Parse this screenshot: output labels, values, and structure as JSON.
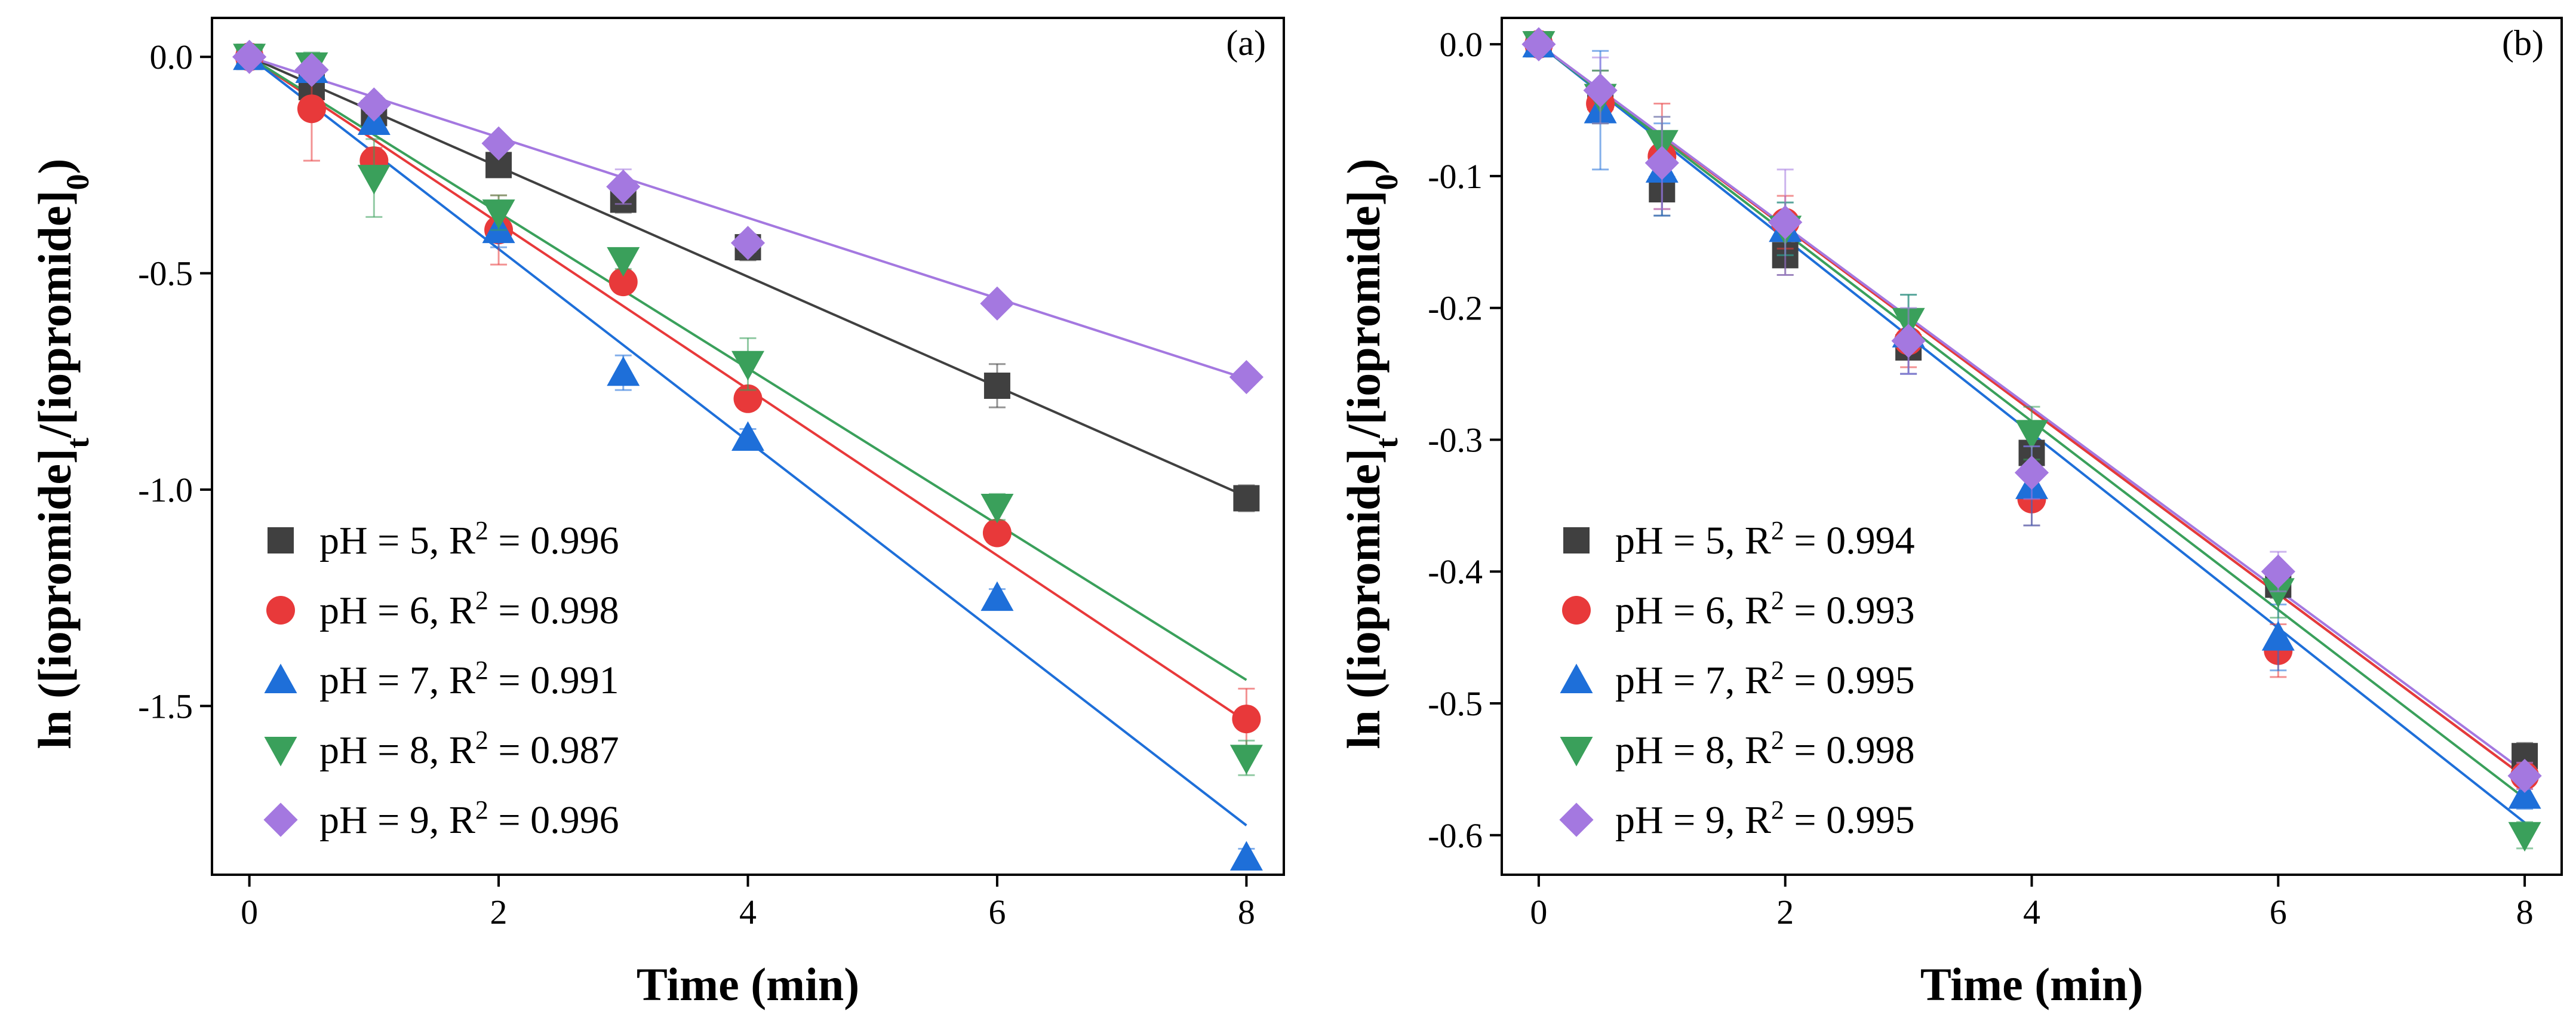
{
  "figure": {
    "ylabel_prefix": "ln ([iopromide]",
    "ylabel_sub_t": "t",
    "ylabel_mid": "/[iopromide]",
    "ylabel_sub_0": "0",
    "ylabel_suffix": ")"
  },
  "chart_data": [
    {
      "type": "scatter",
      "panel": "(a)",
      "xlabel": "Time (min)",
      "ylabel": "ln ([iopromide]t/[iopromide]0)",
      "xlim": [
        -0.3,
        8.3
      ],
      "ylim": [
        -1.89,
        0.09
      ],
      "xticks": [
        0,
        2,
        4,
        6,
        8
      ],
      "xtick_labels": [
        "0",
        "2",
        "4",
        "6",
        "8"
      ],
      "yticks": [
        0,
        -0.5,
        -1,
        -1.5
      ],
      "ytick_labels": [
        "0.0",
        "-0.5",
        "-1.0",
        "-1.5"
      ],
      "x": [
        0,
        0.5,
        1,
        2,
        3,
        4,
        6,
        8
      ],
      "series": [
        {
          "name": "pH = 5",
          "legend": [
            "pH = 5, R",
            "2",
            " = 0.996"
          ],
          "marker": "square",
          "color": "#404040",
          "values": [
            0,
            -0.07,
            -0.13,
            -0.25,
            -0.33,
            -0.44,
            -0.76,
            -1.02
          ],
          "errors": [
            0,
            0.02,
            0.02,
            0.01,
            0.03,
            0.03,
            0.05,
            0.03
          ],
          "slope": -0.127
        },
        {
          "name": "pH = 6",
          "legend": [
            "pH = 6, R",
            "2",
            " = 0.998"
          ],
          "marker": "circle",
          "color": "#e8393a",
          "values": [
            0,
            -0.12,
            -0.24,
            -0.4,
            -0.52,
            -0.79,
            -1.1,
            -1.53
          ],
          "errors": [
            0,
            0.12,
            0.03,
            0.08,
            0.02,
            0.02,
            0.02,
            0.07
          ],
          "slope": -0.192
        },
        {
          "name": "pH = 7",
          "legend": [
            "pH = 7, R",
            "2",
            " = 0.991"
          ],
          "marker": "triangle-up",
          "color": "#1e6fd9",
          "values": [
            0,
            -0.03,
            -0.15,
            -0.4,
            -0.73,
            -0.88,
            -1.25,
            -1.85
          ],
          "errors": [
            0,
            0.02,
            0.02,
            0.04,
            0.04,
            0.02,
            0.02,
            0.02
          ],
          "slope": -0.222
        },
        {
          "name": "pH = 8",
          "legend": [
            "pH = 8, R",
            "2",
            " = 0.987"
          ],
          "marker": "triangle-down",
          "color": "#3aa05b",
          "values": [
            0,
            -0.02,
            -0.28,
            -0.36,
            -0.47,
            -0.71,
            -1.04,
            -1.62
          ],
          "errors": [
            0,
            0.03,
            0.09,
            0.04,
            0.02,
            0.06,
            0.03,
            0.04
          ],
          "slope": -0.18
        },
        {
          "name": "pH = 9",
          "legend": [
            "pH = 9, R",
            "2",
            " = 0.996"
          ],
          "marker": "diamond",
          "color": "#a478e0",
          "values": [
            0,
            -0.03,
            -0.11,
            -0.2,
            -0.3,
            -0.43,
            -0.57,
            -0.74
          ],
          "errors": [
            0,
            0.02,
            0.02,
            0.01,
            0.04,
            0.02,
            0.01,
            0.01
          ],
          "slope": -0.093
        }
      ]
    },
    {
      "type": "scatter",
      "panel": "(b)",
      "xlabel": "Time (min)",
      "ylabel": "ln ([iopromide]t/[iopromide]0)",
      "xlim": [
        -0.3,
        8.3
      ],
      "ylim": [
        -0.63,
        0.02
      ],
      "xticks": [
        0,
        2,
        4,
        6,
        8
      ],
      "xtick_labels": [
        "0",
        "2",
        "4",
        "6",
        "8"
      ],
      "yticks": [
        0,
        -0.1,
        -0.2,
        -0.3,
        -0.4,
        -0.5,
        -0.6
      ],
      "ytick_labels": [
        "0.0",
        "-0.1",
        "-0.2",
        "-0.3",
        "-0.4",
        "-0.5",
        "-0.6"
      ],
      "x": [
        0,
        0.5,
        1,
        2,
        3,
        4,
        6,
        8
      ],
      "series": [
        {
          "name": "pH = 5",
          "legend": [
            "pH = 5, R",
            "2",
            " = 0.994"
          ],
          "marker": "square",
          "color": "#404040",
          "values": [
            0,
            -0.04,
            -0.11,
            -0.16,
            -0.23,
            -0.31,
            -0.41,
            -0.54
          ],
          "errors": [
            0,
            0.02,
            0.02,
            0.015,
            0.02,
            0.02,
            0.01,
            0.01
          ],
          "slope": -0.0695
        },
        {
          "name": "pH = 6",
          "legend": [
            "pH = 6, R",
            "2",
            " = 0.993"
          ],
          "marker": "circle",
          "color": "#e8393a",
          "values": [
            0,
            -0.045,
            -0.085,
            -0.135,
            -0.225,
            -0.345,
            -0.46,
            -0.555
          ],
          "errors": [
            0,
            0.01,
            0.04,
            0.02,
            0.02,
            0.02,
            0.02,
            0.01
          ],
          "slope": -0.0695
        },
        {
          "name": "pH = 7",
          "legend": [
            "pH = 7, R",
            "2",
            " = 0.995"
          ],
          "marker": "triangle-up",
          "color": "#1e6fd9",
          "values": [
            0,
            -0.05,
            -0.095,
            -0.14,
            -0.22,
            -0.335,
            -0.45,
            -0.57
          ],
          "errors": [
            0,
            0.045,
            0.035,
            0.02,
            0.03,
            0.03,
            0.025,
            0.01
          ],
          "slope": -0.0738
        },
        {
          "name": "pH = 8",
          "legend": [
            "pH = 8, R",
            "2",
            " = 0.998"
          ],
          "marker": "triangle-down",
          "color": "#3aa05b",
          "values": [
            0,
            -0.04,
            -0.075,
            -0.14,
            -0.21,
            -0.295,
            -0.415,
            -0.6
          ],
          "errors": [
            0,
            0.02,
            0.02,
            0.02,
            0.02,
            0.02,
            0.02,
            0.01
          ],
          "slope": -0.0715
        },
        {
          "name": "pH = 9",
          "legend": [
            "pH = 9, R",
            "2",
            " = 0.995"
          ],
          "marker": "diamond",
          "color": "#a478e0",
          "values": [
            0,
            -0.035,
            -0.09,
            -0.135,
            -0.225,
            -0.325,
            -0.4,
            -0.555
          ],
          "errors": [
            0,
            0.025,
            0.035,
            0.04,
            0.025,
            0.02,
            0.015,
            0.01
          ],
          "slope": -0.069
        }
      ]
    }
  ]
}
